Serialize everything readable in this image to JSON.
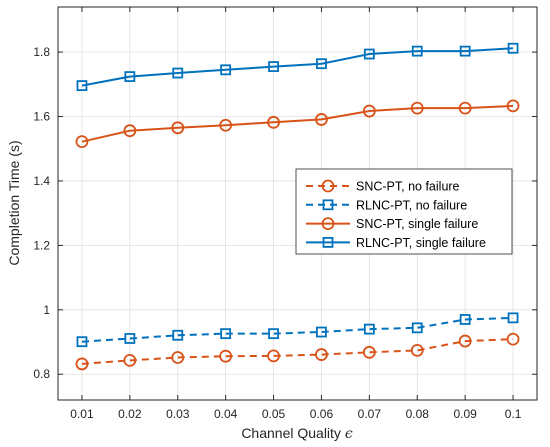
{
  "chart_data": {
    "type": "line",
    "xlabel": "Channel Quality",
    "xlabel_symbol": "ϵ",
    "ylabel": "Completion Time (s)",
    "xlim": [
      0.005,
      0.105
    ],
    "ylim": [
      0.72,
      1.94
    ],
    "grid": true,
    "legend_position": "right",
    "x": [
      0.01,
      0.02,
      0.03,
      0.04,
      0.05,
      0.06,
      0.07,
      0.08,
      0.09,
      0.1
    ],
    "x_tick_labels": [
      "0.01",
      "0.02",
      "0.03",
      "0.04",
      "0.05",
      "0.06",
      "0.07",
      "0.08",
      "0.09",
      "0.1"
    ],
    "y_ticks": [
      0.8,
      1.0,
      1.2,
      1.4,
      1.6,
      1.8
    ],
    "y_tick_labels": [
      "0.8",
      "1",
      "1.2",
      "1.4",
      "1.6",
      "1.8"
    ],
    "series": [
      {
        "name": "SNC-PT, no failure",
        "color": "#D95319",
        "marker": "circle",
        "dash": "dashed",
        "values": [
          0.832,
          0.843,
          0.852,
          0.856,
          0.857,
          0.861,
          0.868,
          0.874,
          0.903,
          0.909
        ]
      },
      {
        "name": "RLNC-PT, no failure",
        "color": "#0072BD",
        "marker": "square",
        "dash": "dashed",
        "values": [
          0.901,
          0.911,
          0.921,
          0.926,
          0.926,
          0.931,
          0.94,
          0.944,
          0.97,
          0.975
        ]
      },
      {
        "name": "SNC-PT, single failure",
        "color": "#D95319",
        "marker": "circle",
        "dash": "solid",
        "values": [
          1.522,
          1.556,
          1.565,
          1.573,
          1.582,
          1.591,
          1.617,
          1.626,
          1.626,
          1.633
        ]
      },
      {
        "name": "RLNC-PT, single failure",
        "color": "#0072BD",
        "marker": "square",
        "dash": "solid",
        "values": [
          1.696,
          1.724,
          1.735,
          1.745,
          1.755,
          1.764,
          1.794,
          1.803,
          1.803,
          1.812
        ]
      }
    ]
  }
}
